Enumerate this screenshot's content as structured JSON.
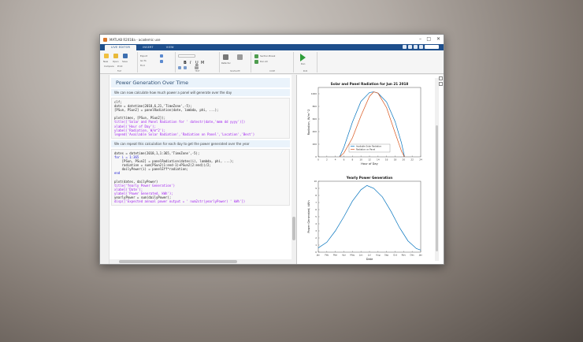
{
  "window": {
    "title": "MATLAB R2018a - academic use",
    "controls": [
      "–",
      "□",
      "✕"
    ]
  },
  "tabs": [
    {
      "label": "LIVE EDITOR",
      "active": true
    },
    {
      "label": "INSERT",
      "active": false
    },
    {
      "label": "VIEW",
      "active": false
    }
  ],
  "toolstrip": {
    "groups": [
      "FILE",
      "TEXT",
      "NAVIGATE",
      "CODE",
      "SECTION",
      "RUN"
    ],
    "items": [
      "New",
      "Open",
      "Save",
      "Compare",
      "Print",
      "Export",
      "Go To",
      "Find",
      "Run",
      "Refactor",
      "Run All",
      "Step",
      "Stop",
      "Section Break"
    ],
    "font_buttons": [
      "B",
      "I",
      "U",
      "M"
    ]
  },
  "editor": {
    "heading": "Power Generation Over Time",
    "text1": "We can now calculate how much power a panel will generate over the day",
    "code1": [
      {
        "t": "clf;",
        "c": "txt"
      },
      {
        "t": "date = datetime(2018,6,21,'TimeZone',-5);",
        "c": "txt"
      },
      {
        "t": "[PSun, PSun2] = panelRadiation(date, lambda, phi, ...);",
        "c": "txt"
      },
      {
        "t": "",
        "c": "txt"
      },
      {
        "t": "plot(times, [PSun, PSun2]);",
        "c": "txt"
      },
      {
        "t": "title(['Solar and Panel Radiation for ' datestr(date,'mmm dd yyyy')])",
        "c": "str"
      },
      {
        "t": "xlabel('Hour of Day');",
        "c": "str"
      },
      {
        "t": "ylabel('Radiation, W/m^2');",
        "c": "str"
      },
      {
        "t": "legend('Available Solar Radiation','Radiation on Panel','Location','Best')",
        "c": "str"
      }
    ],
    "text2": "We can repeat this calculation for each day to get the power generated over the year",
    "code2": [
      {
        "t": "dates = datetime(2018,1,1:365,'TimeZone',-5);",
        "c": "txt"
      },
      {
        "t": "for i = 1:365",
        "c": "kw"
      },
      {
        "t": "    [PSun, PSun2] = panelRadiation(dates(i), lambda, phi, ...);",
        "c": "txt"
      },
      {
        "t": "    radiation = sum(PSun2(1:end-1)+PSun2(2:end))/2;",
        "c": "txt"
      },
      {
        "t": "    dailyPower(i) = panelEff*radiation;",
        "c": "txt"
      },
      {
        "t": "end",
        "c": "kw"
      },
      {
        "t": "",
        "c": "txt"
      },
      {
        "t": "plot(dates, dailyPower)",
        "c": "txt"
      },
      {
        "t": "title('Yearly Power Generation')",
        "c": "str"
      },
      {
        "t": "xlabel('Date');",
        "c": "str"
      },
      {
        "t": "ylabel('Power Generated, kWh');",
        "c": "str"
      },
      {
        "t": "yearlyPower = sum(dailyPower);",
        "c": "txt"
      },
      {
        "t": "disp(['Expected annual power output = ' num2str(yearlyPower) ' kWh'])",
        "c": "str"
      }
    ]
  },
  "chart_data": [
    {
      "type": "line",
      "title": "Solar and Panel Radiation for Jun 21 2018",
      "xlabel": "Hour of Day",
      "ylabel": "Radiation, W/m^2",
      "xlim": [
        0,
        24
      ],
      "ylim": [
        0,
        1100
      ],
      "xticks": [
        0,
        2,
        4,
        6,
        8,
        10,
        12,
        14,
        16,
        18,
        20,
        22,
        24
      ],
      "yticks": [
        0,
        200,
        400,
        600,
        800,
        1000
      ],
      "legend": {
        "placement": "bottom-center",
        "entries": [
          "Available Solar Radiation",
          "Radiation on Panel"
        ]
      },
      "series": [
        {
          "name": "Available Solar Radiation",
          "color": "#0072bd",
          "x": [
            5,
            6,
            8,
            10,
            12,
            13,
            14,
            16,
            18,
            19.5,
            20.2
          ],
          "y": [
            0,
            150,
            550,
            880,
            1020,
            1030,
            1010,
            870,
            560,
            220,
            0
          ]
        },
        {
          "name": "Radiation on Panel",
          "color": "#d95319",
          "x": [
            5,
            6,
            8,
            10,
            12,
            13,
            14,
            16,
            18,
            19.5,
            20.2
          ],
          "y": [
            0,
            60,
            300,
            650,
            960,
            1030,
            1010,
            780,
            380,
            90,
            0
          ]
        }
      ]
    },
    {
      "type": "line",
      "title": "Yearly Power Generation",
      "xlabel": "Date",
      "ylabel": "Power Generated, kWh",
      "xlim": [
        0,
        12
      ],
      "ylim": [
        0,
        10
      ],
      "xticks": [
        "Jan",
        "Feb",
        "Mar",
        "Apr",
        "May",
        "Jun",
        "Jul",
        "Aug",
        "Sep",
        "Oct",
        "Nov",
        "Dec",
        "Jan"
      ],
      "yticks": [
        0,
        1,
        2,
        3,
        4,
        5,
        6,
        7,
        8,
        9,
        10
      ],
      "series": [
        {
          "color": "#0072bd",
          "x": [
            0,
            1,
            2,
            3,
            4,
            5,
            5.7,
            6.5,
            7.5,
            8.5,
            9.5,
            10.5,
            11.5,
            12
          ],
          "y": [
            0.6,
            1.4,
            3.0,
            5.0,
            7.2,
            8.8,
            9.4,
            9.0,
            7.8,
            5.8,
            3.5,
            1.6,
            0.5,
            0.3
          ]
        }
      ]
    }
  ]
}
